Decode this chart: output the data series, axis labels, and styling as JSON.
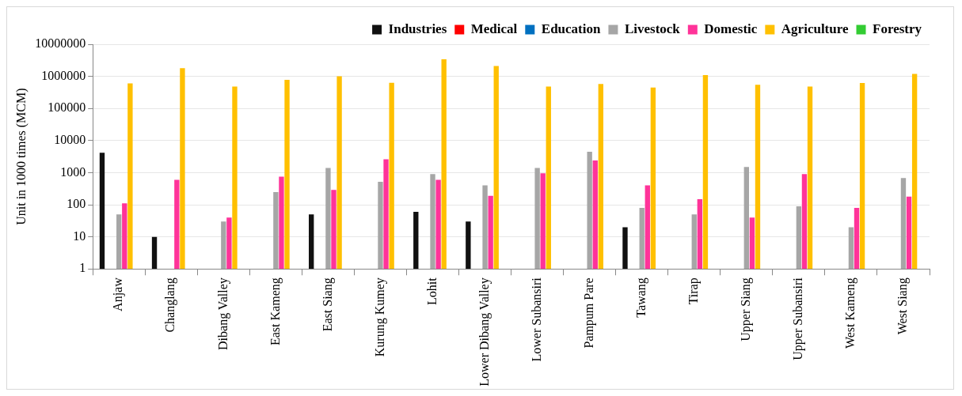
{
  "chart_data": {
    "type": "bar",
    "ylabel": "Unit in 1000 times (MCM)",
    "categories": [
      "Anjaw",
      "Changlang",
      "Dibang Valley",
      "East Kameng",
      "East Siang",
      "Kurung Kumey",
      "Lohit",
      "Lower Dibang Valley",
      "Lower Subansiri",
      "Pampum Pare",
      "Tawang",
      "Tirap",
      "Upper Siang",
      "Upper Subansiri",
      "West Kameng",
      "West Siang"
    ],
    "series": [
      {
        "name": "Industries",
        "color": "#111111",
        "values": [
          4200,
          10,
          null,
          null,
          50,
          null,
          60,
          30,
          null,
          null,
          20,
          null,
          null,
          null,
          null,
          null
        ]
      },
      {
        "name": "Medical",
        "color": "#ff0000",
        "values": [
          null,
          null,
          null,
          null,
          null,
          null,
          null,
          null,
          null,
          null,
          null,
          null,
          null,
          null,
          null,
          null
        ]
      },
      {
        "name": "Education",
        "color": "#0070c0",
        "values": [
          null,
          null,
          null,
          null,
          null,
          null,
          null,
          null,
          null,
          null,
          null,
          null,
          null,
          null,
          null,
          null
        ]
      },
      {
        "name": "Livestock",
        "color": "#a6a6a6",
        "values": [
          50,
          null,
          30,
          250,
          1400,
          520,
          900,
          400,
          1400,
          4500,
          80,
          50,
          1500,
          90,
          20,
          680
        ]
      },
      {
        "name": "Domestic",
        "color": "#ff3399",
        "values": [
          110,
          600,
          40,
          750,
          290,
          2600,
          600,
          190,
          950,
          2400,
          400,
          150,
          40,
          900,
          80,
          180
        ]
      },
      {
        "name": "Agriculture",
        "color": "#ffc000",
        "values": [
          600000,
          1800000,
          480000,
          780000,
          1000000,
          630000,
          3400000,
          2100000,
          480000,
          580000,
          450000,
          1100000,
          550000,
          480000,
          620000,
          1200000
        ]
      },
      {
        "name": "Forestry",
        "color": "#33cc33",
        "values": [
          null,
          null,
          null,
          null,
          null,
          null,
          null,
          null,
          null,
          null,
          null,
          null,
          null,
          null,
          null,
          null
        ]
      }
    ],
    "log": "y",
    "ylim": [
      1,
      10000000
    ],
    "yticks": [
      1,
      10,
      100,
      1000,
      10000,
      100000,
      1000000,
      10000000
    ],
    "grid": "y",
    "legend": "top right"
  }
}
